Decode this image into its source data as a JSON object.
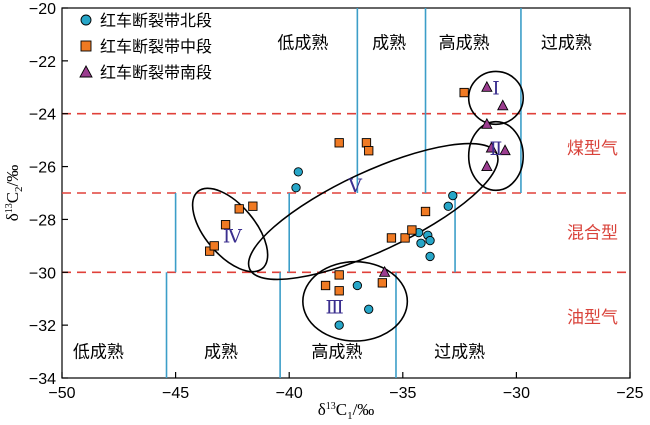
{
  "chart_data": {
    "type": "scatter",
    "xlabel": "δ13C1/‰",
    "ylabel": "δ13C2/‰",
    "xlim": [
      -50,
      -25
    ],
    "ylim": [
      -34,
      -20
    ],
    "x_ticks": [
      -50,
      -45,
      -40,
      -35,
      -30,
      -25
    ],
    "y_ticks": [
      -20,
      -22,
      -24,
      -26,
      -28,
      -30,
      -32,
      -34
    ],
    "grid": false,
    "legend_position": "top-left",
    "colors": {
      "north": "#27a6c8",
      "middle": "#f07a23",
      "south": "#9b3d8f",
      "divider": "#e0403a",
      "zone_line": "#3c9ec8",
      "label_red": "#d9433b"
    },
    "series": [
      {
        "name": "红车断裂带北段",
        "marker": "circle",
        "points": [
          [
            -39.6,
            -26.2
          ],
          [
            -39.7,
            -26.8
          ],
          [
            -33.0,
            -27.5
          ],
          [
            -32.8,
            -27.1
          ],
          [
            -34.3,
            -28.5
          ],
          [
            -33.9,
            -28.6
          ],
          [
            -34.2,
            -28.9
          ],
          [
            -33.8,
            -28.8
          ],
          [
            -33.8,
            -29.4
          ],
          [
            -37.0,
            -30.5
          ],
          [
            -36.5,
            -31.4
          ],
          [
            -37.8,
            -32.0
          ]
        ]
      },
      {
        "name": "红车断裂带中段",
        "marker": "square",
        "points": [
          [
            -32.3,
            -23.2
          ],
          [
            -37.8,
            -25.1
          ],
          [
            -36.6,
            -25.1
          ],
          [
            -36.5,
            -25.4
          ],
          [
            -43.5,
            -29.2
          ],
          [
            -43.3,
            -29.0
          ],
          [
            -42.8,
            -28.2
          ],
          [
            -42.2,
            -27.6
          ],
          [
            -41.6,
            -27.5
          ],
          [
            -35.5,
            -28.7
          ],
          [
            -34.9,
            -28.7
          ],
          [
            -34.6,
            -28.4
          ],
          [
            -34.0,
            -27.7
          ],
          [
            -38.4,
            -30.5
          ],
          [
            -37.8,
            -30.1
          ],
          [
            -37.8,
            -30.7
          ],
          [
            -35.9,
            -30.4
          ]
        ]
      },
      {
        "name": "红车断裂带南段",
        "marker": "triangle",
        "points": [
          [
            -31.3,
            -23.0
          ],
          [
            -30.6,
            -23.7
          ],
          [
            -31.3,
            -24.4
          ],
          [
            -31.1,
            -25.3
          ],
          [
            -30.5,
            -25.4
          ],
          [
            -31.3,
            -26.0
          ],
          [
            -35.8,
            -30.0
          ]
        ]
      }
    ],
    "gas_type_boundaries": [
      -24,
      -27,
      -30
    ],
    "gas_types": [
      {
        "label": "煤型气",
        "y": -25.3
      },
      {
        "label": "混合型",
        "y": -28.5
      },
      {
        "label": "油型气",
        "y": -31.7
      }
    ],
    "upper_maturity": {
      "boundaries_x": [
        -37.0,
        -34.0,
        -29.8
      ],
      "zones": [
        {
          "label": "低成熟",
          "x": -39.4
        },
        {
          "label": "成熟",
          "x": -35.6
        },
        {
          "label": "高成熟",
          "x": -32.3
        },
        {
          "label": "过成熟",
          "x": -27.8
        }
      ]
    },
    "middle_maturity": {
      "boundaries_x": [
        -45.0,
        -40.0,
        -32.7
      ]
    },
    "lower_maturity": {
      "boundaries_x": [
        -45.4,
        -40.4,
        -35.3
      ],
      "zones": [
        {
          "label": "低成熟",
          "x": -48.4
        },
        {
          "label": "成熟",
          "x": -43.0
        },
        {
          "label": "高成熟",
          "x": -37.9
        },
        {
          "label": "过成熟",
          "x": -32.5
        }
      ]
    },
    "groups": [
      {
        "label": "Ⅰ",
        "cx": -30.9,
        "cy": -23.4,
        "rx": 1.2,
        "ry": 1.0,
        "rotate": 0
      },
      {
        "label": "Ⅱ",
        "cx": -30.9,
        "cy": -25.6,
        "rx": 1.2,
        "ry": 1.3,
        "rotate": 0
      },
      {
        "label": "Ⅲ",
        "cx": -37.1,
        "cy": -31.1,
        "rx": 2.3,
        "ry": 1.5,
        "rotate": 0
      },
      {
        "label": "Ⅳ",
        "cx": -42.6,
        "cy": -28.4,
        "rx": 1.1,
        "ry": 1.9,
        "rotate": 40
      },
      {
        "label": "Ⅴ",
        "cx": -36.3,
        "cy": -27.7,
        "rx": 6.0,
        "ry": 1.5,
        "rotate": 25
      }
    ],
    "group_label_positions": [
      {
        "x": -30.9,
        "y": -23.0
      },
      {
        "x": -30.9,
        "y": -25.3
      },
      {
        "x": -38.0,
        "y": -31.3
      },
      {
        "x": -42.5,
        "y": -28.6
      },
      {
        "x": -37.1,
        "y": -26.7
      }
    ]
  }
}
